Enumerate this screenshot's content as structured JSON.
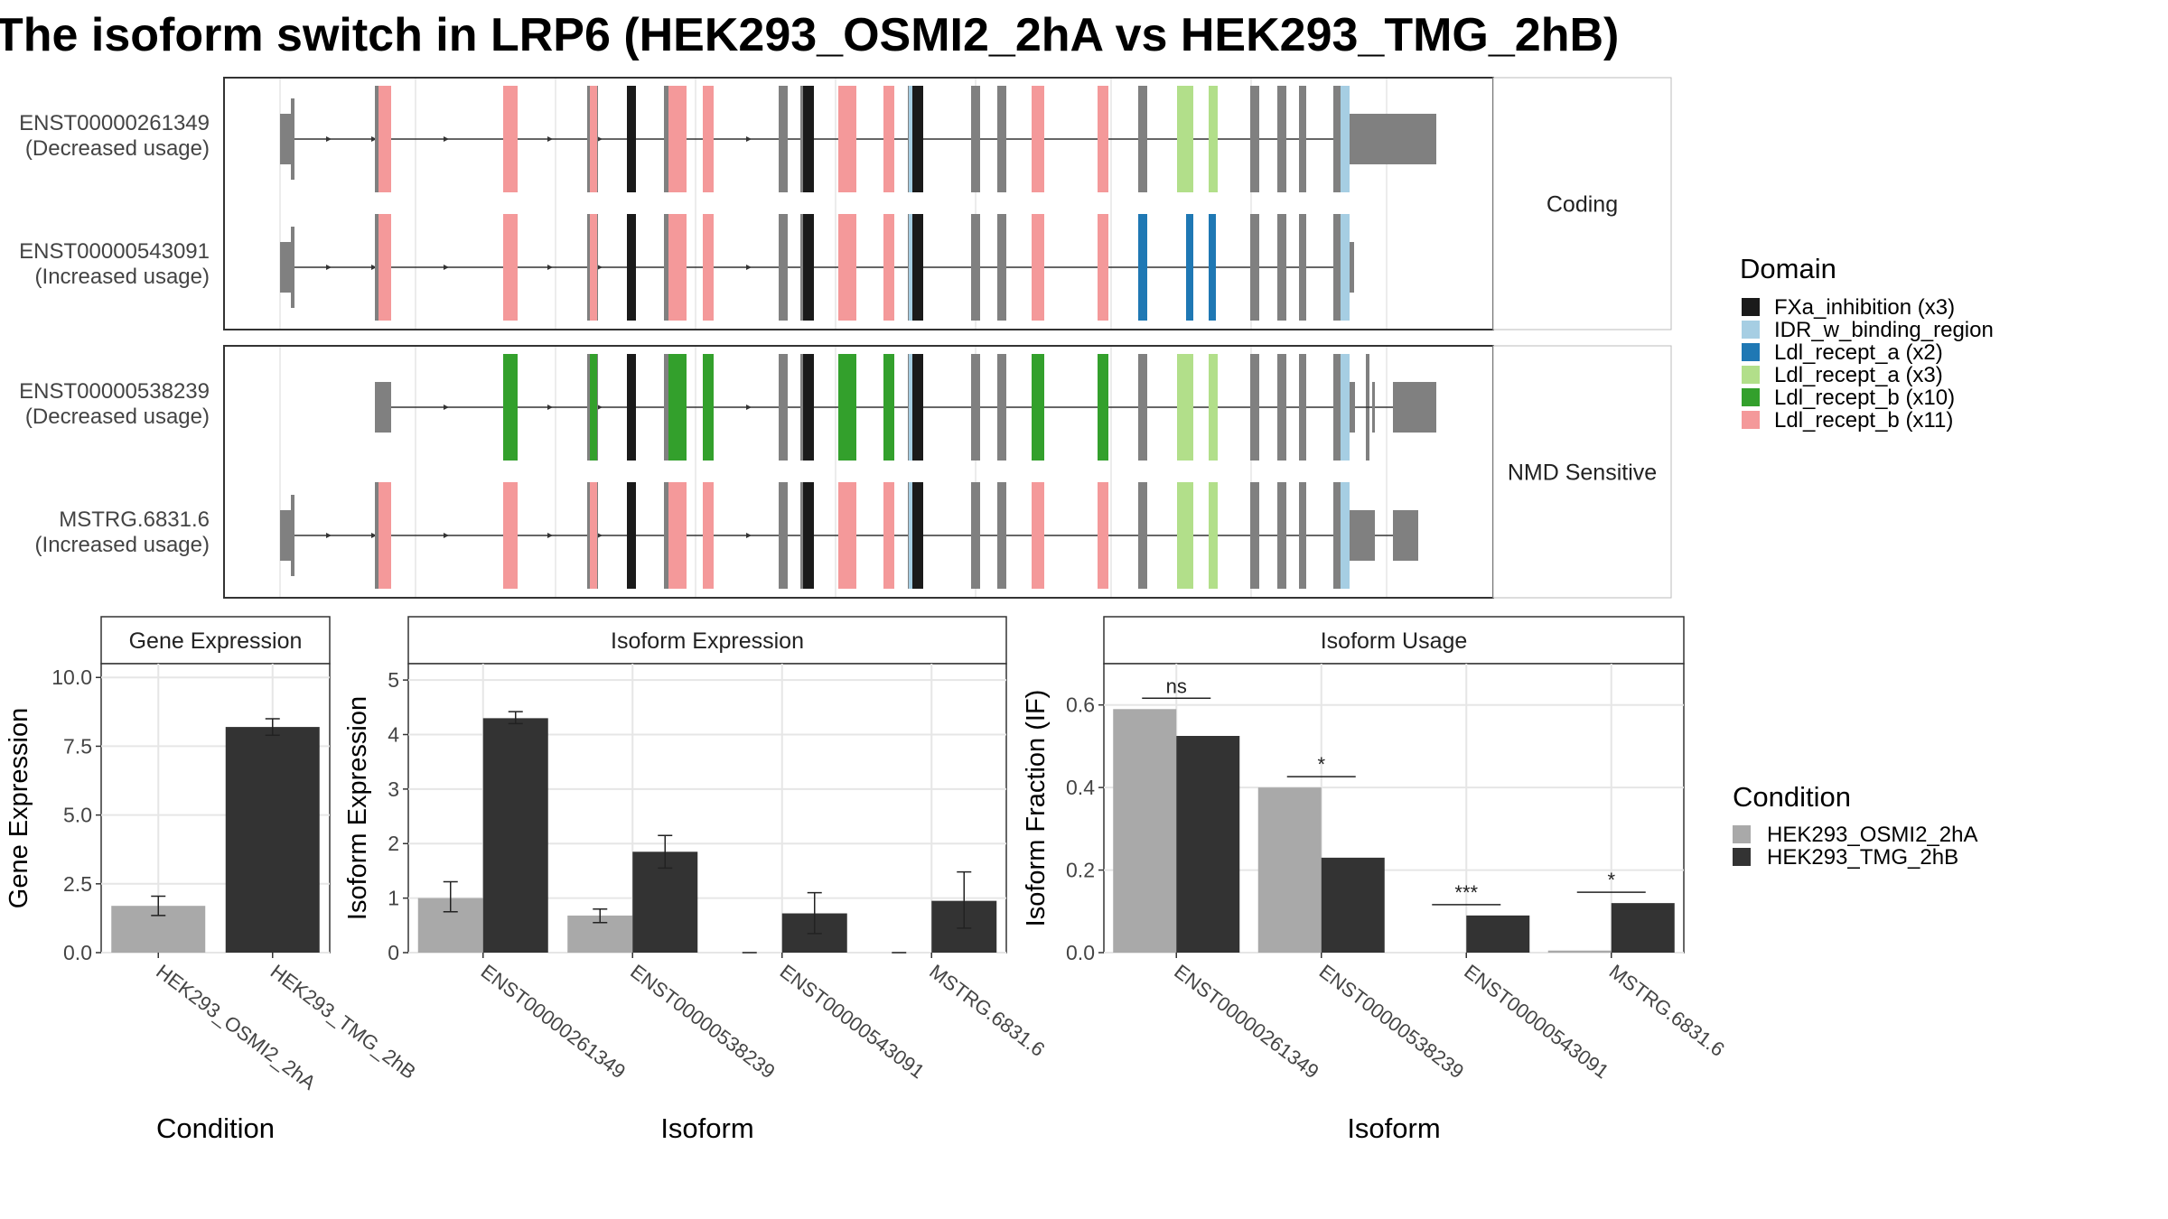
{
  "title": "The isoform switch in LRP6 (HEK293_OSMI2_2hA vs HEK293_TMG_2hB)",
  "colors": {
    "FXa_inhibition": "#1a1a1a",
    "IDR_w_binding_region": "#a6cee3",
    "Ldl_recept_a_x2": "#1f78b4",
    "Ldl_recept_a_x3": "#b2df8a",
    "Ldl_recept_b_x10": "#33a02c",
    "Ldl_recept_b_x11": "#f4999a",
    "exon": "#808080",
    "cond1": "#a9a9a9",
    "cond2": "#333333"
  },
  "structure": {
    "facets": [
      "Coding",
      "NMD Sensitive"
    ],
    "transcripts": [
      {
        "id": "ENST00000261349",
        "usage": "(Decreased usage)",
        "facet": "Coding"
      },
      {
        "id": "ENST00000543091",
        "usage": "(Increased usage)",
        "facet": "Coding"
      },
      {
        "id": "ENST00000538239",
        "usage": "(Decreased usage)",
        "facet": "NMD Sensitive"
      },
      {
        "id": "MSTRG.6831.6",
        "usage": "(Increased usage)",
        "facet": "NMD Sensitive"
      }
    ]
  },
  "legend_domain": {
    "title": "Domain",
    "items": [
      {
        "label": "FXa_inhibition (x3)",
        "color": "#1a1a1a"
      },
      {
        "label": "IDR_w_binding_region",
        "color": "#a6cee3"
      },
      {
        "label": "Ldl_recept_a (x2)",
        "color": "#1f78b4"
      },
      {
        "label": "Ldl_recept_a (x3)",
        "color": "#b2df8a"
      },
      {
        "label": "Ldl_recept_b (x10)",
        "color": "#33a02c"
      },
      {
        "label": "Ldl_recept_b (x11)",
        "color": "#f4999a"
      }
    ]
  },
  "legend_condition": {
    "title": "Condition",
    "items": [
      {
        "label": "HEK293_OSMI2_2hA",
        "color": "#a9a9a9"
      },
      {
        "label": "HEK293_TMG_2hB",
        "color": "#333333"
      }
    ]
  },
  "chart_data": [
    {
      "type": "bar",
      "title": "Gene Expression",
      "xlabel": "Condition",
      "ylabel": "Gene Expression",
      "categories": [
        "HEK293_OSMI2_2hA",
        "HEK293_TMG_2hB"
      ],
      "values": [
        1.7,
        8.2
      ],
      "errors": [
        [
          1.35,
          2.05
        ],
        [
          7.9,
          8.5
        ]
      ],
      "ylim": [
        0,
        10.5
      ],
      "yticks": [
        "0.0",
        "2.5",
        "5.0",
        "7.5",
        "10.0"
      ],
      "grid": true
    },
    {
      "type": "bar",
      "title": "Isoform Expression",
      "xlabel": "Isoform",
      "ylabel": "Isoform Expression",
      "categories": [
        "ENST00000261349",
        "ENST00000538239",
        "ENST00000543091",
        "MSTRG.6831.6"
      ],
      "series": [
        {
          "name": "HEK293_OSMI2_2hA",
          "values": [
            1.0,
            0.68,
            0.0,
            0.0
          ],
          "errors": [
            [
              0.75,
              1.3
            ],
            [
              0.55,
              0.8
            ],
            [
              0.0,
              0.0
            ],
            [
              0.0,
              0.0
            ]
          ]
        },
        {
          "name": "HEK293_TMG_2hB",
          "values": [
            4.3,
            1.85,
            0.72,
            0.95
          ],
          "errors": [
            [
              4.2,
              4.42
            ],
            [
              1.55,
              2.15
            ],
            [
              0.35,
              1.1
            ],
            [
              0.45,
              1.48
            ]
          ]
        }
      ],
      "ylim": [
        0,
        5.3
      ],
      "yticks": [
        "0",
        "1",
        "2",
        "3",
        "4",
        "5"
      ],
      "grid": true
    },
    {
      "type": "bar",
      "title": "Isoform Usage",
      "xlabel": "Isoform",
      "ylabel": "Isoform Fraction (IF)",
      "categories": [
        "ENST00000261349",
        "ENST00000538239",
        "ENST00000543091",
        "MSTRG.6831.6"
      ],
      "series": [
        {
          "name": "HEK293_OSMI2_2hA",
          "values": [
            0.59,
            0.4,
            0.0,
            0.005
          ]
        },
        {
          "name": "HEK293_TMG_2hB",
          "values": [
            0.525,
            0.23,
            0.09,
            0.12
          ]
        }
      ],
      "significance": [
        "ns",
        "*",
        "***",
        "*"
      ],
      "ylim": [
        0,
        0.7
      ],
      "yticks": [
        "0.0",
        "0.2",
        "0.4",
        "0.6"
      ],
      "grid": true
    }
  ]
}
